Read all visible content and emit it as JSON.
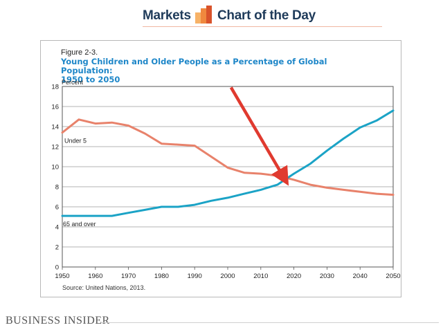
{
  "banner": {
    "left_text": "Markets",
    "right_text": "Chart of the Day",
    "logo_icon": "bar-chart-logo-icon",
    "logo_colors": [
      "#f7b267",
      "#f0883e",
      "#d9532b"
    ]
  },
  "brand": "BUSINESS INSIDER",
  "chart_data": {
    "type": "line",
    "figure_label": "Figure 2-3.",
    "title": "Young Children and Older People as a Percentage of Global Population: 1950 to 2050",
    "title_lines": [
      "Young Children and Older People as a Percentage of Global Population:",
      "1950 to 2050"
    ],
    "ylabel": "Percent",
    "xlabel": "",
    "xlim": [
      1950,
      2050
    ],
    "ylim": [
      0,
      18
    ],
    "x_ticks": [
      1950,
      1960,
      1970,
      1980,
      1990,
      2000,
      2010,
      2020,
      2030,
      2040,
      2050
    ],
    "y_ticks": [
      0,
      2,
      4,
      6,
      8,
      10,
      12,
      14,
      16,
      18
    ],
    "grid": true,
    "source": "Source: United Nations, 2013.",
    "series": [
      {
        "name": "Under 5",
        "color": "#e8826b",
        "x": [
          1950,
          1955,
          1960,
          1965,
          1970,
          1975,
          1980,
          1985,
          1990,
          1995,
          2000,
          2005,
          2010,
          2015,
          2020,
          2025,
          2030,
          2035,
          2040,
          2045,
          2050
        ],
        "y": [
          13.4,
          14.7,
          14.3,
          14.4,
          14.1,
          13.3,
          12.3,
          12.2,
          12.1,
          11.0,
          9.9,
          9.4,
          9.3,
          9.1,
          8.7,
          8.2,
          7.9,
          7.7,
          7.5,
          7.3,
          7.2
        ]
      },
      {
        "name": "65 and over",
        "color": "#1ba3c6",
        "x": [
          1950,
          1955,
          1960,
          1965,
          1970,
          1975,
          1980,
          1985,
          1990,
          1995,
          2000,
          2005,
          2010,
          2015,
          2020,
          2025,
          2030,
          2035,
          2040,
          2045,
          2050
        ],
        "y": [
          5.1,
          5.1,
          5.1,
          5.1,
          5.4,
          5.7,
          6.0,
          6.0,
          6.2,
          6.6,
          6.9,
          7.3,
          7.7,
          8.2,
          9.3,
          10.3,
          11.6,
          12.8,
          13.9,
          14.6,
          15.6
        ]
      }
    ],
    "annotation": {
      "type": "arrow",
      "color": "#e03a2f",
      "from": [
        2001,
        17.9
      ],
      "to": [
        2017,
        8.9
      ]
    }
  }
}
